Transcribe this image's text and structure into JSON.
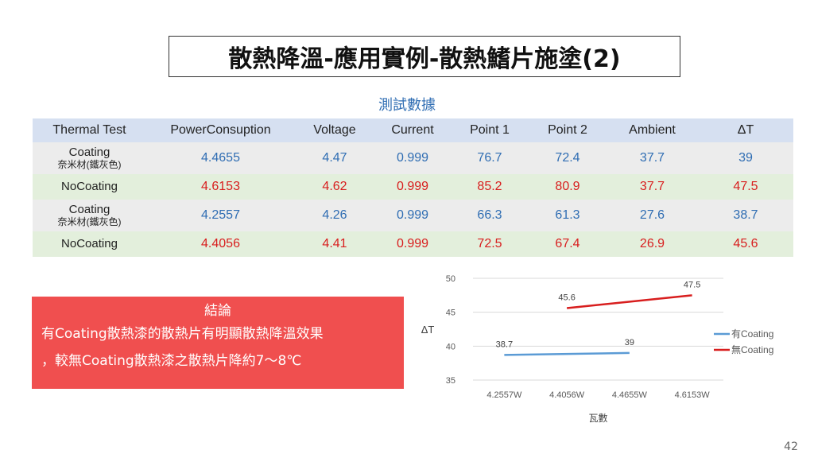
{
  "title": "散熱降溫-應用實例-散熱鰭片施塗(2)",
  "table_title": "測試數據",
  "table": {
    "headers": [
      "Thermal Test",
      "PowerConsuption",
      "Voltage",
      "Current",
      "Point 1",
      "Point 2",
      "Ambient",
      "ΔT"
    ],
    "rows": [
      {
        "label": "Coating",
        "sublabel": "奈米材(鐵灰色)",
        "values": [
          "4.4655",
          "4.47",
          "0.999",
          "76.7",
          "72.4",
          "37.7",
          "39"
        ],
        "color": "#2f6db3"
      },
      {
        "label": "NoCoating",
        "sublabel": "",
        "values": [
          "4.6153",
          "4.62",
          "0.999",
          "85.2",
          "80.9",
          "37.7",
          "47.5"
        ],
        "color": "#d81e1e"
      },
      {
        "label": "Coating",
        "sublabel": "奈米材(鐵灰色)",
        "values": [
          "4.2557",
          "4.26",
          "0.999",
          "66.3",
          "61.3",
          "27.6",
          "38.7"
        ],
        "color": "#2f6db3"
      },
      {
        "label": "NoCoating",
        "sublabel": "",
        "values": [
          "4.4056",
          "4.41",
          "0.999",
          "72.5",
          "67.4",
          "26.9",
          "45.6"
        ],
        "color": "#d81e1e"
      }
    ]
  },
  "conclusion": {
    "heading": "結論",
    "line1": "有Coating散熱漆的散熱片有明顯散熱降溫效果",
    "line2": "，較無Coating散熱漆之散熱片降約7～8℃"
  },
  "chart_data": {
    "type": "line",
    "categories": [
      "4.2557W",
      "4.4056W",
      "4.4655W",
      "4.6153W"
    ],
    "series": [
      {
        "name": "有Coating",
        "color": "#5b9bd5",
        "values": [
          38.7,
          null,
          39,
          null
        ]
      },
      {
        "name": "無Coating",
        "color": "#d81e1e",
        "values": [
          null,
          45.6,
          null,
          47.5
        ]
      }
    ],
    "data_labels": [
      {
        "series": 0,
        "index": 0,
        "text": "38.7"
      },
      {
        "series": 0,
        "index": 2,
        "text": "39"
      },
      {
        "series": 1,
        "index": 1,
        "text": "45.6"
      },
      {
        "series": 1,
        "index": 3,
        "text": "47.5"
      }
    ],
    "yticks": [
      "35",
      "40",
      "45",
      "50"
    ],
    "ylim": [
      35,
      50
    ],
    "xlabel": "瓦數",
    "ylabel": "ΔT",
    "grid": true,
    "legend": "right"
  },
  "page_number": "42"
}
